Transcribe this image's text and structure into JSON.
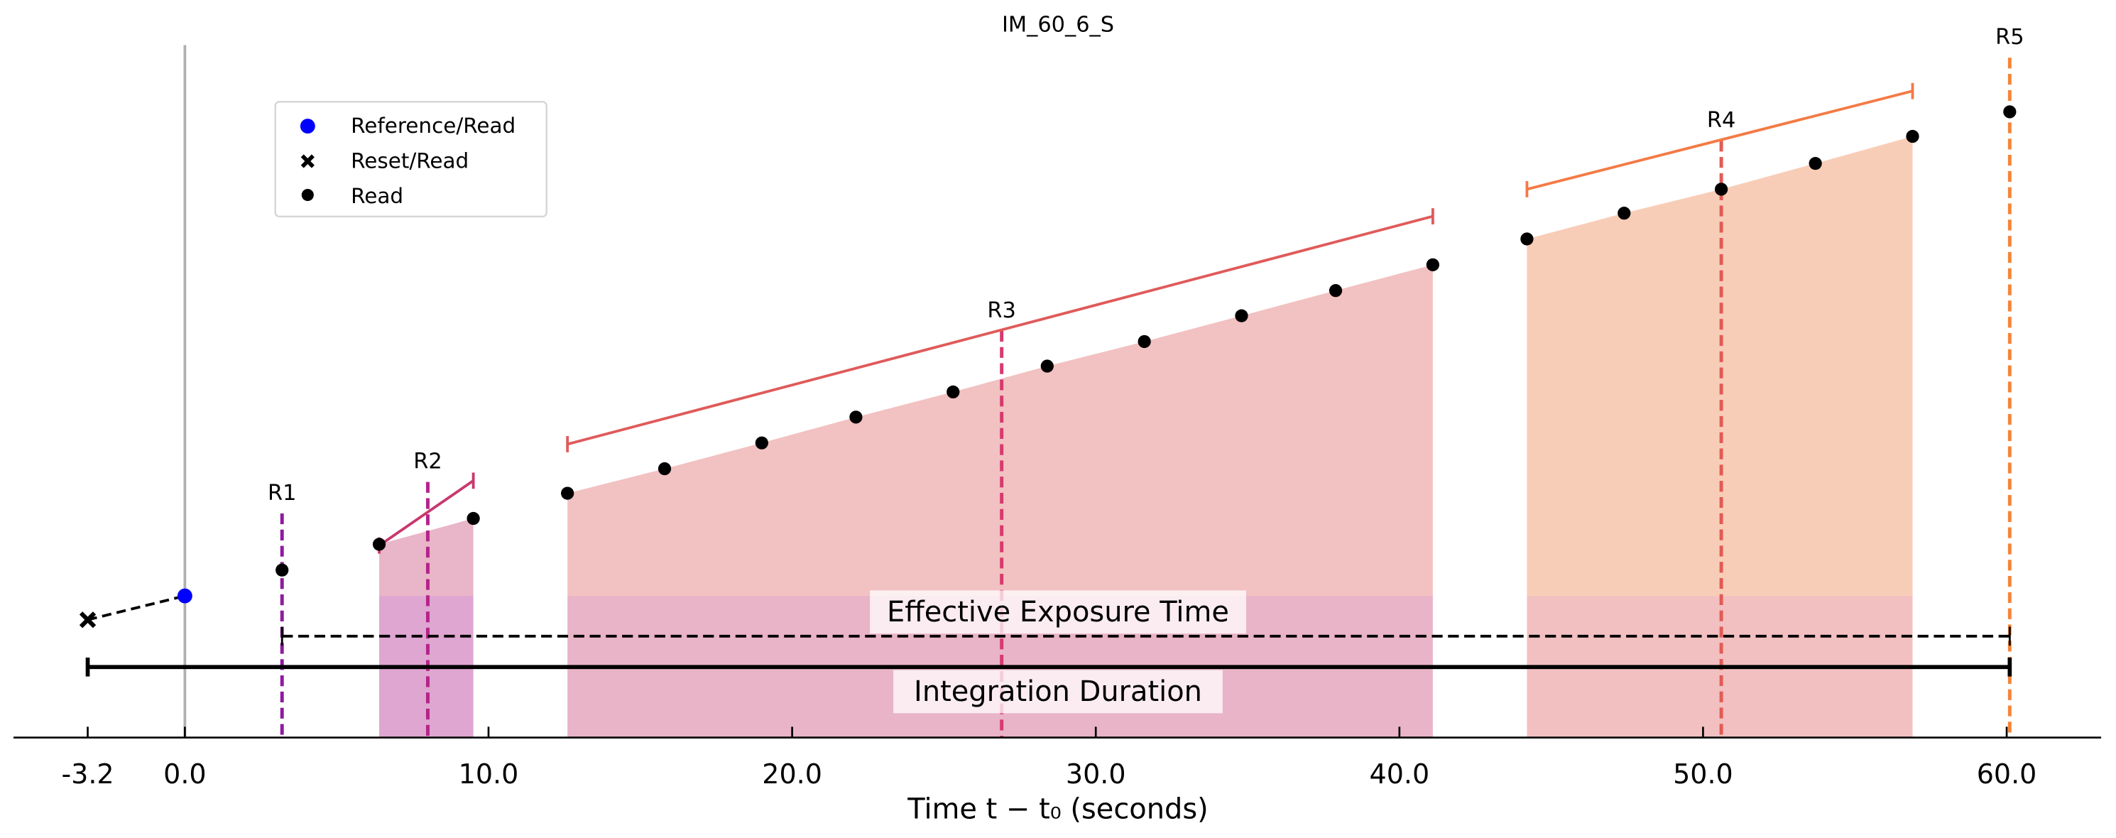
{
  "chart_data": {
    "type": "scatter",
    "title": "IM_60_6_S",
    "xlabel": "Time t − t₀ (seconds)",
    "ylabel": "",
    "xlim": [
      -5.8,
      63.3
    ],
    "ylim": [
      0,
      110
    ],
    "x_ticks": [
      -3.2,
      0.0,
      10.0,
      20.0,
      30.0,
      40.0,
      50.0,
      60.0
    ],
    "x_tick_labels": [
      "-3.2",
      "0.0",
      "10.0",
      "20.0",
      "30.0",
      "40.0",
      "50.0",
      "60.0"
    ],
    "grid": false,
    "legend": {
      "placement": "upper-left",
      "entries": [
        {
          "label": "Reference/Read",
          "marker": "circle",
          "color": "#0000ff"
        },
        {
          "label": "Reset/Read",
          "marker": "x",
          "color": "#000000"
        },
        {
          "label": "Read",
          "marker": "circle",
          "color": "#000000"
        }
      ]
    },
    "reset_read": {
      "x": -3.2,
      "y": 18.7
    },
    "reference_read": {
      "x": 0.0,
      "y": 22.5
    },
    "reads": [
      {
        "x": 3.2,
        "y": 26.6
      },
      {
        "x": 6.4,
        "y": 30.7
      },
      {
        "x": 9.5,
        "y": 34.8
      },
      {
        "x": 12.6,
        "y": 38.8
      },
      {
        "x": 15.8,
        "y": 42.7
      },
      {
        "x": 19.0,
        "y": 46.8
      },
      {
        "x": 22.1,
        "y": 50.9
      },
      {
        "x": 25.3,
        "y": 54.9
      },
      {
        "x": 28.4,
        "y": 59.0
      },
      {
        "x": 31.6,
        "y": 62.9
      },
      {
        "x": 34.8,
        "y": 67.0
      },
      {
        "x": 37.9,
        "y": 71.0
      },
      {
        "x": 41.1,
        "y": 75.1
      },
      {
        "x": 44.2,
        "y": 79.2
      },
      {
        "x": 47.4,
        "y": 83.3
      },
      {
        "x": 50.6,
        "y": 87.1
      },
      {
        "x": 53.7,
        "y": 91.2
      },
      {
        "x": 56.9,
        "y": 95.5
      },
      {
        "x": 60.1,
        "y": 99.4
      }
    ],
    "resultants": [
      {
        "label": "R1",
        "x": 3.2,
        "line_top": 35.6,
        "color": "#8e1b9e",
        "upper_color": null,
        "lower_color": null
      },
      {
        "label": "R2",
        "x": 8.0,
        "line_top": 40.6,
        "color": "#b5248a",
        "start": 6.4,
        "end": 9.5,
        "bracket": [
          30.5,
          40.8
        ],
        "bracket_color": "#c9376e",
        "upper_color": "#e9b5c8",
        "lower_color": "#dea6d0"
      },
      {
        "label": "R3",
        "x": 26.9,
        "line_top": 64.6,
        "color": "#d63a6e",
        "start": 12.6,
        "end": 41.1,
        "bracket": [
          46.6,
          82.8
        ],
        "bracket_color": "#e05a5a",
        "upper_color": "#f2c1c1",
        "lower_color": "#e9b4c7"
      },
      {
        "label": "R4",
        "x": 50.6,
        "line_top": 94.8,
        "color": "#e35a55",
        "start": 44.2,
        "end": 56.9,
        "bracket": [
          87.1,
          102.7
        ],
        "bracket_color": "#f47a45",
        "upper_color": "#f8cdb7",
        "lower_color": "#f2c0c0"
      },
      {
        "label": "R5",
        "x": 60.1,
        "line_top": 108.0,
        "color": "#f5853a",
        "upper_color": null,
        "lower_color": null
      }
    ],
    "reference_level": 22.5,
    "effective_exposure": {
      "label": "Effective Exposure Time",
      "start": 3.2,
      "end": 60.1,
      "y": 16.1
    },
    "integration_duration": {
      "label": "Integration Duration",
      "start": -3.2,
      "end": 60.1,
      "y": 11.2
    }
  }
}
